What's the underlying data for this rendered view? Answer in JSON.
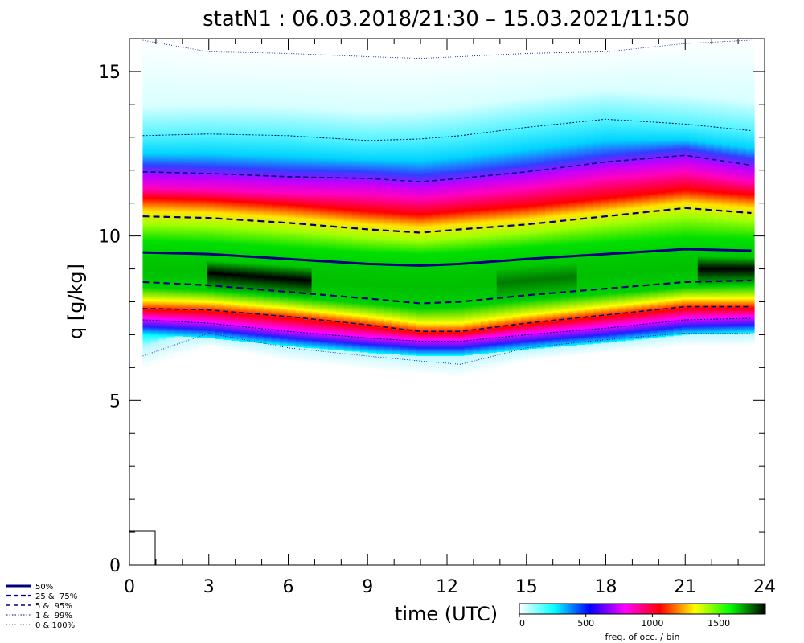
{
  "chart_data": {
    "type": "heatmap",
    "title": "statN1 : 06.03.2018/21:30 – 15.03.2021/11:50",
    "xlabel": "time (UTC)",
    "ylabel": "q [g/kg]",
    "xlim": [
      0,
      24
    ],
    "ylim": [
      0,
      16
    ],
    "x_ticks": [
      "0",
      "3",
      "6",
      "9",
      "12",
      "15",
      "18",
      "21",
      "24"
    ],
    "y_ticks": [
      "0",
      "5",
      "10",
      "15"
    ],
    "colorbar": {
      "label": "freq. of occ. / bin",
      "ticks": [
        "0",
        "500",
        "1000",
        "1500"
      ],
      "range": [
        0,
        1850
      ],
      "colors": [
        "#ffffff",
        "#00ffff",
        "#0000ff",
        "#ff00ff",
        "#ff0000",
        "#ffff00",
        "#00ff00",
        "#000000"
      ]
    },
    "legend": [
      {
        "label": "50%",
        "style": "solid-thick"
      },
      {
        "label": "25 &  75%",
        "style": "dashed-thick"
      },
      {
        "label": "5 &  95%",
        "style": "dashed-thin"
      },
      {
        "label": "1 &  99%",
        "style": "dotted"
      },
      {
        "label": "0 & 100%",
        "style": "dotted-fine"
      }
    ],
    "x": [
      0.5,
      3,
      6,
      9,
      11,
      12.5,
      15,
      18,
      21,
      23.5
    ],
    "series": [
      {
        "name": "50%",
        "values": [
          9.5,
          9.45,
          9.3,
          9.15,
          9.1,
          9.15,
          9.3,
          9.45,
          9.6,
          9.55
        ]
      },
      {
        "name": "25%",
        "values": [
          8.6,
          8.5,
          8.3,
          8.1,
          7.95,
          8.0,
          8.2,
          8.4,
          8.6,
          8.65
        ]
      },
      {
        "name": "75%",
        "values": [
          10.6,
          10.55,
          10.4,
          10.2,
          10.1,
          10.2,
          10.35,
          10.6,
          10.85,
          10.7
        ]
      },
      {
        "name": "5%",
        "values": [
          7.8,
          7.75,
          7.55,
          7.3,
          7.1,
          7.1,
          7.35,
          7.6,
          7.85,
          7.85
        ]
      },
      {
        "name": "95%",
        "values": [
          11.95,
          11.9,
          11.8,
          11.75,
          11.65,
          11.75,
          11.95,
          12.25,
          12.45,
          12.15
        ]
      },
      {
        "name": "1%",
        "values": [
          7.45,
          7.35,
          7.1,
          6.9,
          6.8,
          6.8,
          7.0,
          7.2,
          7.45,
          7.5
        ]
      },
      {
        "name": "99%",
        "values": [
          13.05,
          13.1,
          13.05,
          12.9,
          12.95,
          13.05,
          13.3,
          13.55,
          13.4,
          13.2
        ]
      },
      {
        "name": "0%",
        "values": [
          6.35,
          7.05,
          6.6,
          6.35,
          6.2,
          6.1,
          6.6,
          6.85,
          7.05,
          7.05
        ]
      },
      {
        "name": "100%",
        "values": [
          15.95,
          15.6,
          15.55,
          15.45,
          15.4,
          15.45,
          15.55,
          15.6,
          15.85,
          15.95
        ]
      }
    ]
  }
}
